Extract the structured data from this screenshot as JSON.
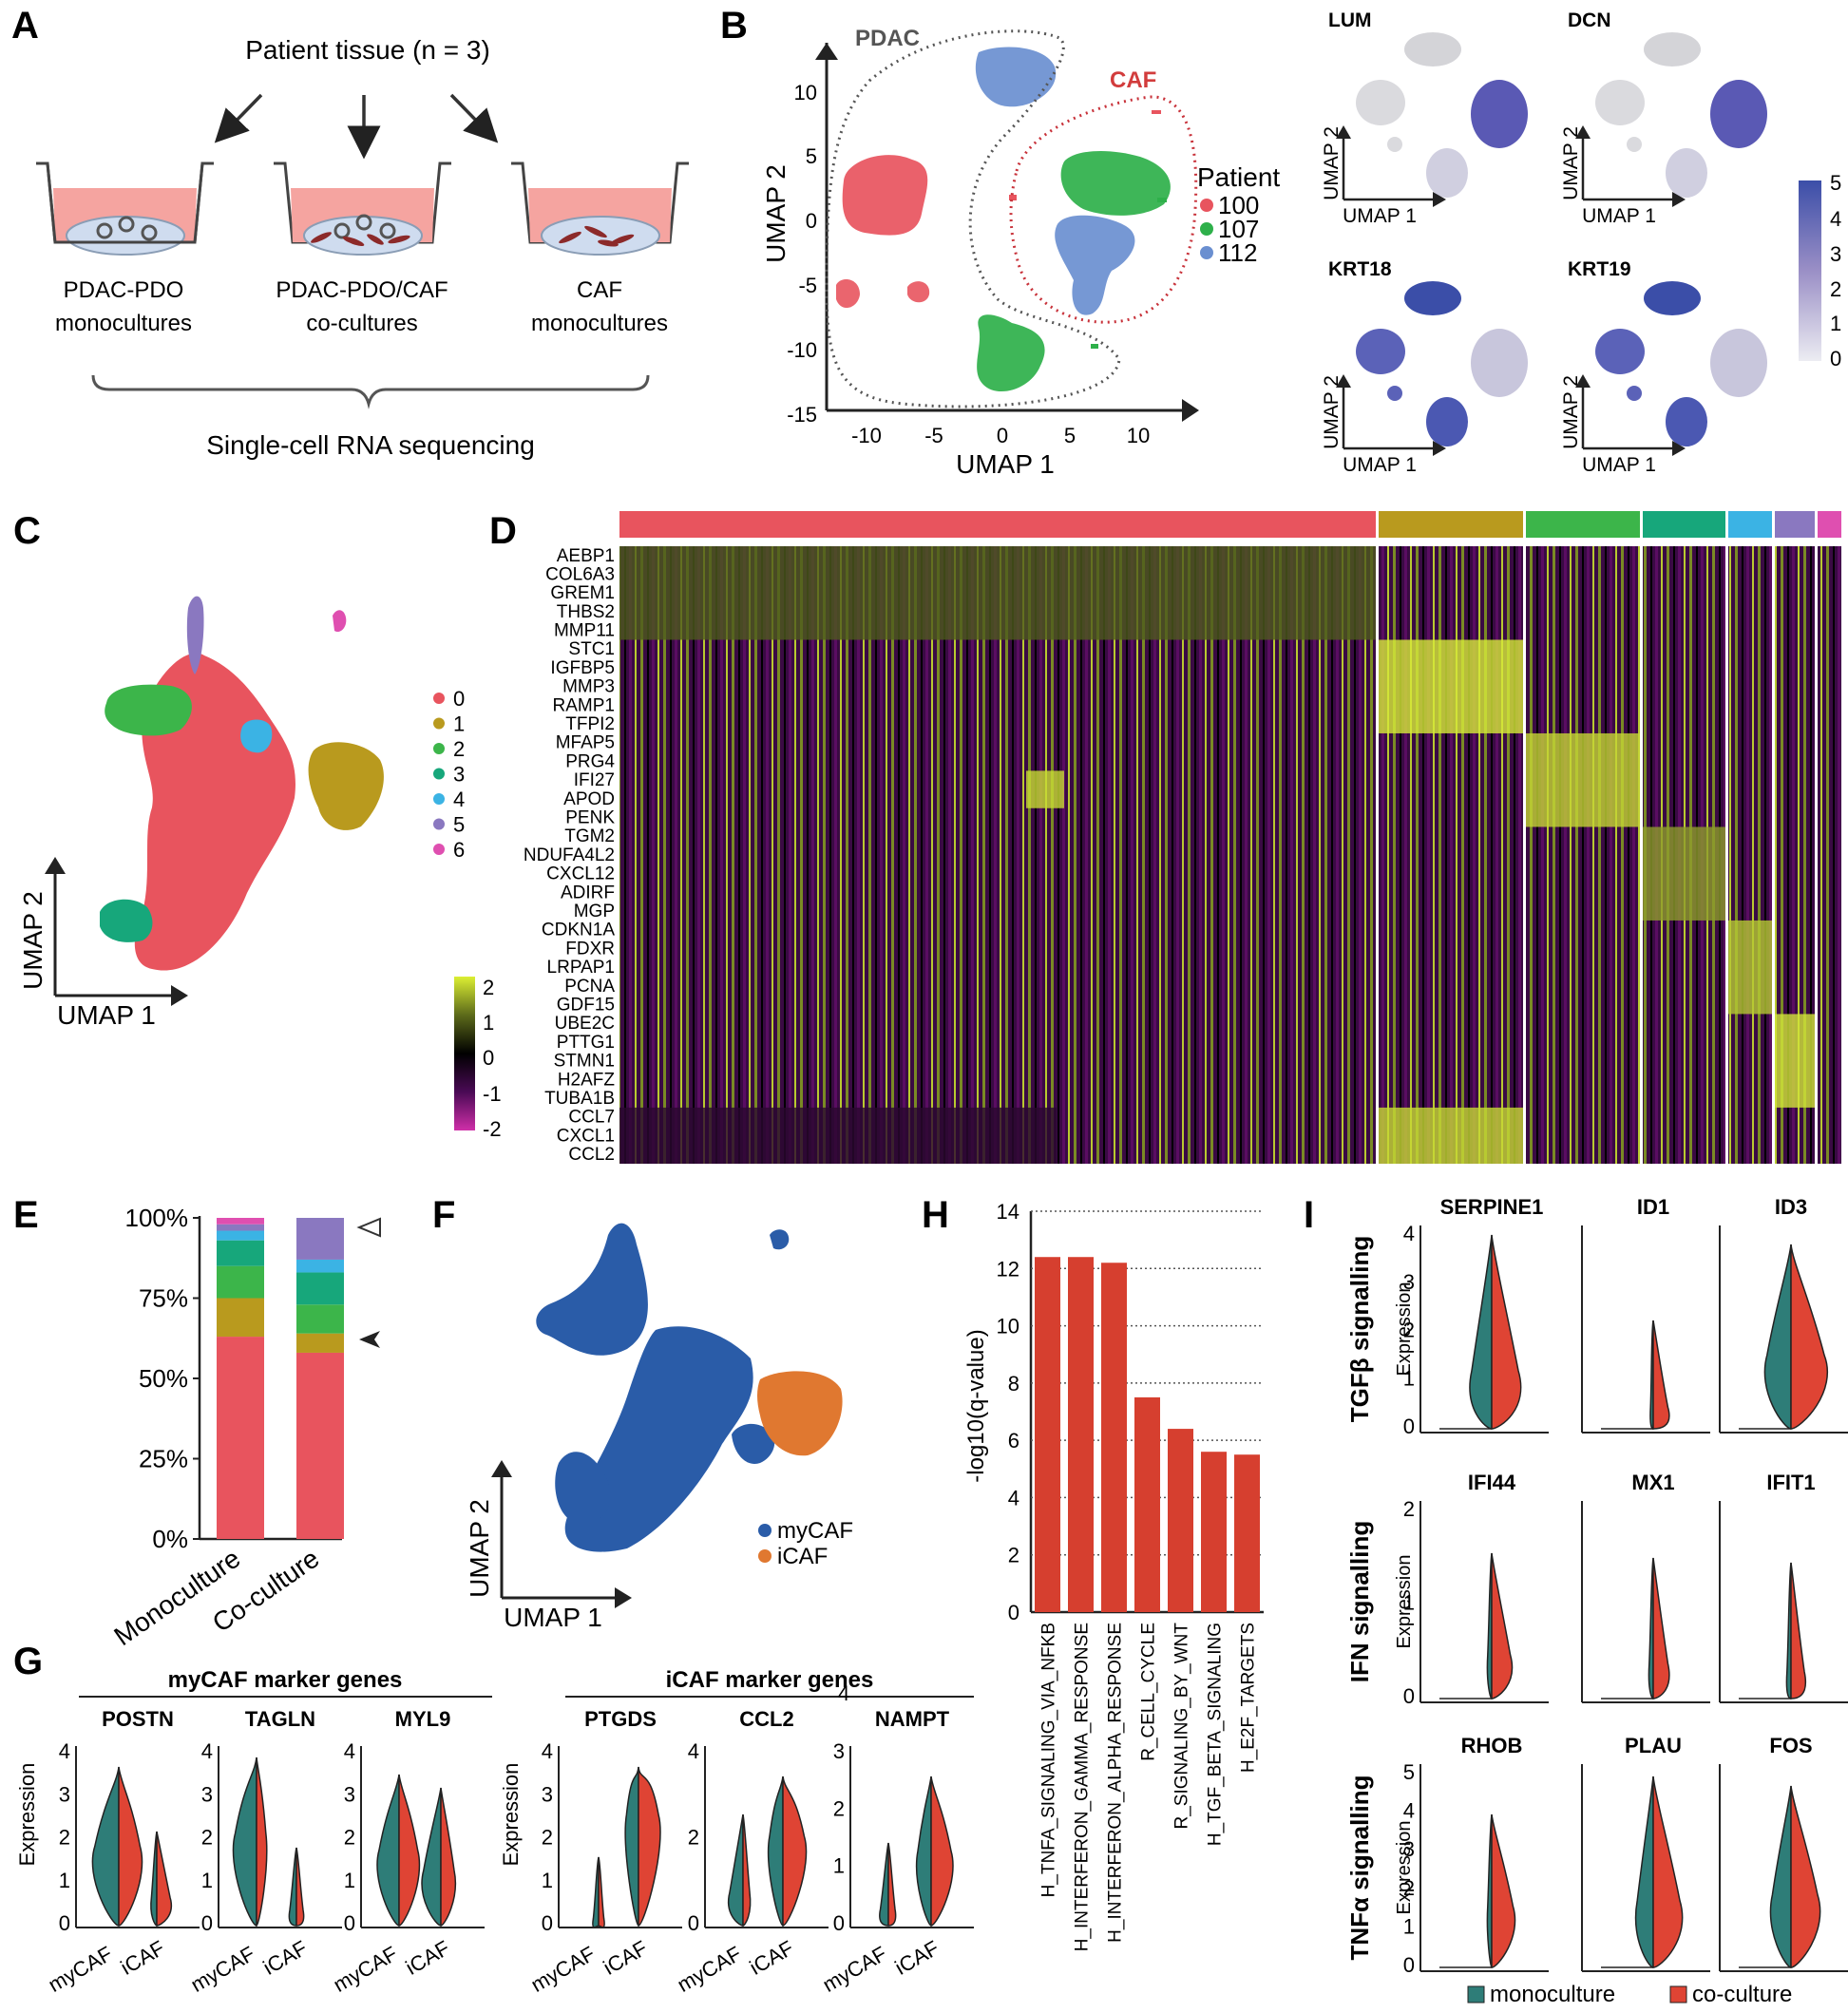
{
  "panels": {
    "A": {
      "letter": "A",
      "title": "Patient tissue (n = 3)",
      "wells": [
        {
          "line1": "PDAC-PDO",
          "line2": "monocultures"
        },
        {
          "line1": "PDAC-PDO/CAF",
          "line2": "co-cultures"
        },
        {
          "line1": "CAF",
          "line2": "monocultures"
        }
      ],
      "footer": "Single-cell RNA sequencing"
    },
    "B": {
      "letter": "B",
      "xlabel": "UMAP 1",
      "ylabel": "UMAP 2",
      "xticks": [
        "-10",
        "-5",
        "0",
        "5",
        "10"
      ],
      "yticks": [
        "10",
        "5",
        "0",
        "-5",
        "-10",
        "-15"
      ],
      "group_pdac": "PDAC",
      "group_caf": "CAF",
      "legend_title": "Patient",
      "patients": [
        {
          "label": "100",
          "color": "#e8545e"
        },
        {
          "label": "107",
          "color": "#2eb04a"
        },
        {
          "label": "112",
          "color": "#6a8fd0"
        }
      ],
      "feature_genes": [
        "LUM",
        "DCN",
        "KRT18",
        "KRT19"
      ],
      "mini_xlabel": "UMAP 1",
      "mini_ylabel": "UMAP 2",
      "colorbar_ticks": [
        "5",
        "4",
        "3",
        "2",
        "1",
        "0"
      ]
    },
    "C": {
      "letter": "C",
      "xlabel": "UMAP 1",
      "ylabel": "UMAP 2",
      "clusters": [
        {
          "label": "0",
          "color": "#e8545e"
        },
        {
          "label": "1",
          "color": "#b99a1e"
        },
        {
          "label": "2",
          "color": "#3cb54a"
        },
        {
          "label": "3",
          "color": "#17a77b"
        },
        {
          "label": "4",
          "color": "#3bb3e4"
        },
        {
          "label": "5",
          "color": "#8a78c0"
        },
        {
          "label": "6",
          "color": "#df4fb0"
        }
      ],
      "scale_ticks": [
        "2",
        "1",
        "0",
        "-1",
        "-2"
      ]
    },
    "D": {
      "letter": "D",
      "genes": [
        "AEBP1",
        "COL6A3",
        "GREM1",
        "THBS2",
        "MMP11",
        "STC1",
        "IGFBP5",
        "MMP3",
        "RAMP1",
        "TFPI2",
        "MFAP5",
        "PRG4",
        "IFI27",
        "APOD",
        "PENK",
        "TGM2",
        "NDUFA4L2",
        "CXCL12",
        "ADIRF",
        "MGP",
        "CDKN1A",
        "FDXR",
        "LRPAP1",
        "PCNA",
        "GDF15",
        "UBE2C",
        "PTTG1",
        "STMN1",
        "H2AFZ",
        "TUBA1B",
        "CCL7",
        "CXCL1",
        "CCL2"
      ]
    },
    "E": {
      "letter": "E",
      "yticks": [
        "100%",
        "75%",
        "50%",
        "25%",
        "0%"
      ],
      "categories": [
        "Monoculture",
        "Co-culture"
      ]
    },
    "F": {
      "letter": "F",
      "xlabel": "UMAP 1",
      "ylabel": "UMAP 2",
      "legend": [
        {
          "label": "myCAF",
          "color": "#2a5ca8"
        },
        {
          "label": "iCAF",
          "color": "#e07830"
        }
      ]
    },
    "G": {
      "letter": "G",
      "group1": "myCAF marker genes",
      "group2": "iCAF marker genes",
      "genes": [
        "POSTN",
        "TAGLN",
        "MYL9",
        "PTGDS",
        "CCL2",
        "NAMPT"
      ],
      "ylabel": "Expression",
      "xcats": [
        "myCAF",
        "iCAF"
      ],
      "stray": "4"
    },
    "H": {
      "letter": "H",
      "ylabel": "-log10(q-value)",
      "yticks": [
        "14",
        "12",
        "10",
        "8",
        "6",
        "4",
        "2",
        "0"
      ]
    },
    "I": {
      "letter": "I",
      "rows": [
        {
          "title": "TGFβ signalling",
          "genes": [
            "SERPINE1",
            "ID1",
            "ID3"
          ]
        },
        {
          "title": "IFN signalling",
          "genes": [
            "IFI44",
            "MX1",
            "IFIT1"
          ]
        },
        {
          "title": "TNFα signalling",
          "genes": [
            "RHOB",
            "PLAU",
            "FOS"
          ]
        }
      ],
      "ylabel": "Expression",
      "legend": [
        {
          "label": "monoculture",
          "color": "#2e7d78"
        },
        {
          "label": "co-culture",
          "color": "#df4434"
        }
      ]
    }
  },
  "chart_data": [
    {
      "type": "bar",
      "panel": "E",
      "title": "",
      "xlabel": "",
      "ylabel": "",
      "categories": [
        "Monoculture",
        "Co-culture"
      ],
      "series": [
        {
          "name": "0",
          "color": "#e8545e",
          "values": [
            63,
            58
          ]
        },
        {
          "name": "1",
          "color": "#b99a1e",
          "values": [
            12,
            6
          ]
        },
        {
          "name": "2",
          "color": "#3cb54a",
          "values": [
            10,
            9
          ]
        },
        {
          "name": "3",
          "color": "#17a77b",
          "values": [
            8,
            10
          ]
        },
        {
          "name": "4",
          "color": "#3bb3e4",
          "values": [
            3,
            4
          ]
        },
        {
          "name": "5",
          "color": "#8a78c0",
          "values": [
            2,
            13
          ]
        },
        {
          "name": "6",
          "color": "#df4fb0",
          "values": [
            2,
            0
          ]
        }
      ],
      "ylim": [
        0,
        100
      ],
      "stacked": true
    },
    {
      "type": "bar",
      "panel": "H",
      "title": "",
      "xlabel": "",
      "ylabel": "-log10(q-value)",
      "categories": [
        "H_TNFA_SIGNALING_VIA_NFKB",
        "H_INTERFERON_GAMMA_RESPONSE",
        "H_INTERFERON_ALPHA_RESPONSE",
        "R_CELL_CYCLE",
        "R_SIGNALING_BY_WNT",
        "H_TGF_BETA_SIGNALING",
        "H_E2F_TARGETS"
      ],
      "values": [
        12.4,
        12.4,
        12.2,
        7.5,
        6.4,
        5.6,
        5.5
      ],
      "ylim": [
        0,
        14
      ],
      "color": "#d63f2f"
    }
  ]
}
